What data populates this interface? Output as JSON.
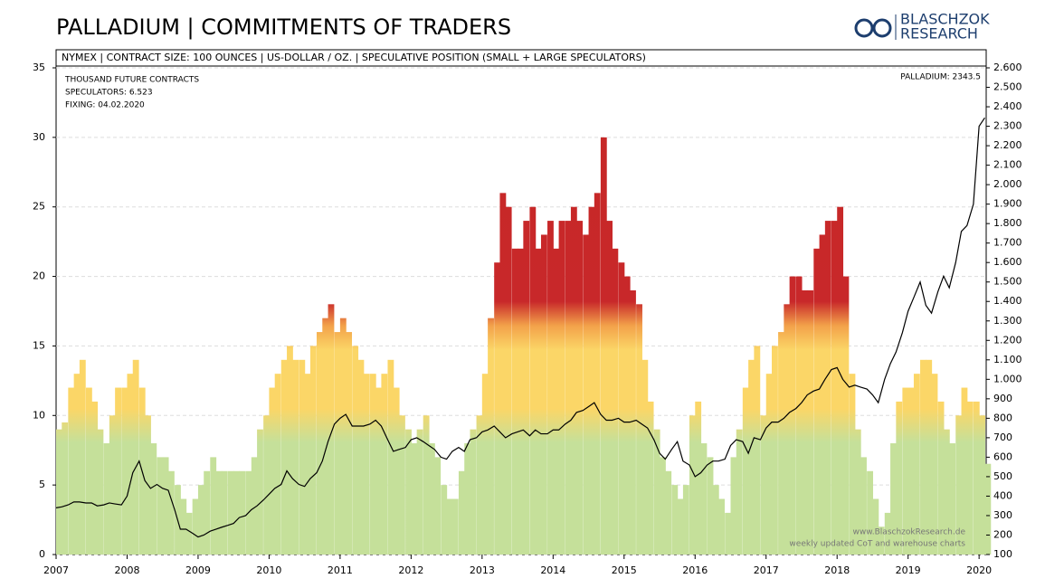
{
  "chart_data": {
    "type": "bar",
    "title": "PALLADIUM | COMMITMENTS OF TRADERS",
    "subtitle": "NYMEX | CONTRACT SIZE: 100 OUNCES | US-DOLLAR / OZ. | SPECULATIVE POSITION (SMALL + LARGE SPECULATORS)",
    "annotations": [
      "THOUSAND FUTURE CONTRACTS",
      "SPECULATORS: 6.523",
      "FIXING: 04.02.2020",
      "PALLADIUM: 2343.5"
    ],
    "watermark": [
      "www.BlaschzokResearch.de",
      "weekly updated CoT and warehouse charts"
    ],
    "logo": [
      "BLASCHZOK",
      "RESEARCH"
    ],
    "grid": true,
    "xlim": [
      2007,
      2020.1
    ],
    "xticks": [
      2007,
      2008,
      2009,
      2010,
      2011,
      2012,
      2013,
      2014,
      2015,
      2016,
      2017,
      2018,
      2019,
      2020
    ],
    "ylim": [
      0,
      35
    ],
    "yticks": [
      0,
      5,
      10,
      15,
      20,
      25,
      30,
      35
    ],
    "y2lim": [
      100,
      2600
    ],
    "y2ticks": [
      100,
      200,
      300,
      400,
      500,
      600,
      700,
      800,
      900,
      {
        "value": 1000,
        "label": "1.000"
      },
      {
        "value": 1100,
        "label": "1.100"
      },
      {
        "value": 1200,
        "label": "1.200"
      },
      {
        "value": 1300,
        "label": "1.300"
      },
      {
        "value": 1400,
        "label": "1.400"
      },
      {
        "value": 1500,
        "label": "1.500"
      },
      {
        "value": 1600,
        "label": "1.600"
      },
      {
        "value": 1700,
        "label": "1.700"
      },
      {
        "value": 1800,
        "label": "1.800"
      },
      {
        "value": 1900,
        "label": "1.900"
      },
      {
        "value": 2000,
        "label": "2.000"
      },
      {
        "value": 2100,
        "label": "2.100"
      },
      {
        "value": 2200,
        "label": "2.200"
      },
      {
        "value": 2300,
        "label": "2.300"
      },
      {
        "value": 2400,
        "label": "2.400"
      },
      {
        "value": 2500,
        "label": "2.500"
      },
      {
        "value": 2600,
        "label": "2.600"
      }
    ],
    "x": [
      2007.0,
      2007.08,
      2007.17,
      2007.25,
      2007.33,
      2007.42,
      2007.5,
      2007.58,
      2007.67,
      2007.75,
      2007.83,
      2007.92,
      2008.0,
      2008.08,
      2008.17,
      2008.25,
      2008.33,
      2008.42,
      2008.5,
      2008.58,
      2008.67,
      2008.75,
      2008.83,
      2008.92,
      2009.0,
      2009.08,
      2009.17,
      2009.25,
      2009.33,
      2009.42,
      2009.5,
      2009.58,
      2009.67,
      2009.75,
      2009.83,
      2009.92,
      2010.0,
      2010.08,
      2010.17,
      2010.25,
      2010.33,
      2010.42,
      2010.5,
      2010.58,
      2010.67,
      2010.75,
      2010.83,
      2010.92,
      2011.0,
      2011.08,
      2011.17,
      2011.25,
      2011.33,
      2011.42,
      2011.5,
      2011.58,
      2011.67,
      2011.75,
      2011.83,
      2011.92,
      2012.0,
      2012.08,
      2012.17,
      2012.25,
      2012.33,
      2012.42,
      2012.5,
      2012.58,
      2012.67,
      2012.75,
      2012.83,
      2012.92,
      2013.0,
      2013.08,
      2013.17,
      2013.25,
      2013.33,
      2013.42,
      2013.5,
      2013.58,
      2013.67,
      2013.75,
      2013.83,
      2013.92,
      2014.0,
      2014.08,
      2014.17,
      2014.25,
      2014.33,
      2014.42,
      2014.5,
      2014.58,
      2014.67,
      2014.75,
      2014.83,
      2014.92,
      2015.0,
      2015.08,
      2015.17,
      2015.25,
      2015.33,
      2015.42,
      2015.5,
      2015.58,
      2015.67,
      2015.75,
      2015.83,
      2015.92,
      2016.0,
      2016.08,
      2016.17,
      2016.25,
      2016.33,
      2016.42,
      2016.5,
      2016.58,
      2016.67,
      2016.75,
      2016.83,
      2016.92,
      2017.0,
      2017.08,
      2017.17,
      2017.25,
      2017.33,
      2017.42,
      2017.5,
      2017.58,
      2017.67,
      2017.75,
      2017.83,
      2017.92,
      2018.0,
      2018.08,
      2018.17,
      2018.25,
      2018.33,
      2018.42,
      2018.5,
      2018.58,
      2018.67,
      2018.75,
      2018.83,
      2018.92,
      2019.0,
      2019.08,
      2019.17,
      2019.25,
      2019.33,
      2019.42,
      2019.5,
      2019.58,
      2019.67,
      2019.75,
      2019.83,
      2019.92,
      2020.0,
      2020.08
    ],
    "series": [
      {
        "type": "bar",
        "color": "url(#specGrad)",
        "axis": "y",
        "values": [
          9,
          9.5,
          12,
          13,
          14,
          12,
          11,
          9,
          8,
          10,
          12,
          12,
          13,
          14,
          12,
          10,
          8,
          7,
          7,
          6,
          5,
          4,
          3,
          4,
          5,
          6,
          7,
          6,
          6,
          6,
          6,
          6,
          6,
          7,
          9,
          10,
          12,
          13,
          14,
          15,
          14,
          14,
          13,
          15,
          16,
          17,
          18,
          16,
          17,
          16,
          15,
          14,
          13,
          13,
          12,
          13,
          14,
          12,
          10,
          9,
          8,
          9,
          10,
          8,
          7,
          5,
          4,
          4,
          6,
          8,
          9,
          10,
          13,
          17,
          21,
          26,
          25,
          22,
          22,
          24,
          25,
          22,
          23,
          24,
          22,
          24,
          24,
          25,
          24,
          23,
          25,
          26,
          30,
          24,
          22,
          21,
          20,
          19,
          18,
          14,
          11,
          9,
          7,
          6,
          5,
          4,
          5,
          10,
          11,
          8,
          7,
          5,
          4,
          3,
          7,
          9,
          12,
          14,
          15,
          10,
          13,
          15,
          16,
          18,
          20,
          20,
          19,
          19,
          22,
          23,
          24,
          24,
          25,
          20,
          13,
          9,
          7,
          6,
          4,
          2,
          3,
          8,
          11,
          12,
          12,
          13,
          14,
          14,
          13,
          11,
          9,
          8,
          10,
          12,
          11,
          11,
          10,
          6.523
        ]
      },
      {
        "type": "line",
        "color": "#000000",
        "axis": "y2",
        "values": [
          340,
          345,
          355,
          370,
          370,
          365,
          365,
          350,
          355,
          365,
          360,
          355,
          400,
          520,
          580,
          480,
          440,
          460,
          440,
          430,
          330,
          230,
          230,
          210,
          190,
          200,
          220,
          230,
          240,
          250,
          260,
          290,
          300,
          330,
          350,
          380,
          410,
          440,
          460,
          530,
          490,
          460,
          450,
          490,
          520,
          580,
          680,
          770,
          800,
          820,
          760,
          760,
          760,
          770,
          790,
          760,
          690,
          630,
          640,
          650,
          690,
          700,
          680,
          660,
          640,
          600,
          590,
          630,
          650,
          630,
          690,
          700,
          730,
          740,
          760,
          730,
          700,
          720,
          730,
          740,
          710,
          740,
          720,
          720,
          740,
          740,
          770,
          790,
          830,
          840,
          860,
          880,
          820,
          790,
          790,
          800,
          780,
          780,
          790,
          770,
          750,
          690,
          620,
          590,
          640,
          680,
          580,
          560,
          500,
          520,
          560,
          580,
          580,
          590,
          660,
          690,
          680,
          620,
          700,
          690,
          750,
          780,
          780,
          800,
          830,
          850,
          880,
          920,
          940,
          950,
          1000,
          1050,
          1060,
          1000,
          960,
          970,
          960,
          950,
          920,
          880,
          1000,
          1080,
          1140,
          1240,
          1350,
          1420,
          1500,
          1380,
          1340,
          1450,
          1530,
          1470,
          1600,
          1760,
          1790,
          1900,
          2300,
          2343.5
        ]
      }
    ]
  }
}
